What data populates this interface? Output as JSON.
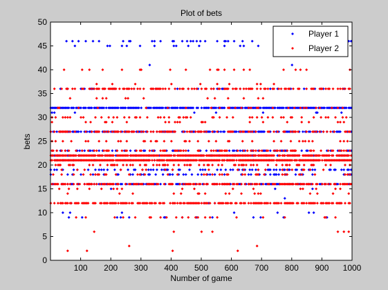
{
  "chart_data": {
    "type": "scatter",
    "title": "Plot of bets",
    "xlabel": "Number of game",
    "ylabel": "bets",
    "xlim": [
      0,
      1000
    ],
    "ylim": [
      0,
      50
    ],
    "xticks": [
      100,
      200,
      300,
      400,
      500,
      600,
      700,
      800,
      900,
      1000
    ],
    "yticks": [
      0,
      5,
      10,
      15,
      20,
      25,
      30,
      35,
      40,
      45,
      50
    ],
    "grid": false,
    "legend": {
      "placement": "top-right",
      "entries": [
        "Player 1",
        "Player 2"
      ]
    },
    "series": [
      {
        "name": "Player 1",
        "color": "#0000ff",
        "marker": "diamond",
        "levels": [
          {
            "y": 45,
            "density": 0.12
          },
          {
            "y": 46,
            "density": 0.13
          },
          {
            "y": 41,
            "density": 0.01
          },
          {
            "y": 36,
            "density": 0.08
          },
          {
            "y": 32,
            "density": 0.85
          },
          {
            "y": 31,
            "density": 0.02
          },
          {
            "y": 27,
            "density": 0.55
          },
          {
            "y": 23,
            "density": 0.3
          },
          {
            "y": 22,
            "density": 0.25
          },
          {
            "y": 21,
            "density": 0.1
          },
          {
            "y": 19,
            "density": 0.35
          },
          {
            "y": 18,
            "density": 0.25
          },
          {
            "y": 16,
            "density": 0.45
          },
          {
            "y": 15,
            "density": 0.02
          },
          {
            "y": 13,
            "density": 0.02
          },
          {
            "y": 12,
            "density": 0.01
          },
          {
            "y": 10,
            "density": 0.02
          },
          {
            "y": 9,
            "density": 0.04
          },
          {
            "y": 5,
            "density": 0.003
          }
        ]
      },
      {
        "name": "Player 2",
        "color": "#ff0000",
        "marker": "diamond",
        "levels": [
          {
            "y": 40,
            "density": 0.08
          },
          {
            "y": 37,
            "density": 0.03
          },
          {
            "y": 36,
            "density": 0.4
          },
          {
            "y": 34,
            "density": 0.05
          },
          {
            "y": 32,
            "density": 0.1
          },
          {
            "y": 30,
            "density": 0.2
          },
          {
            "y": 29,
            "density": 0.1
          },
          {
            "y": 27,
            "density": 0.35
          },
          {
            "y": 25,
            "density": 0.15
          },
          {
            "y": 23,
            "density": 0.3
          },
          {
            "y": 22,
            "density": 0.9
          },
          {
            "y": 21,
            "density": 0.95
          },
          {
            "y": 20,
            "density": 0.25
          },
          {
            "y": 19,
            "density": 0.1
          },
          {
            "y": 18,
            "density": 0.12
          },
          {
            "y": 16,
            "density": 0.55
          },
          {
            "y": 15,
            "density": 0.05
          },
          {
            "y": 14,
            "density": 0.04
          },
          {
            "y": 12,
            "density": 0.65
          },
          {
            "y": 9,
            "density": 0.1
          },
          {
            "y": 6,
            "density": 0.04
          },
          {
            "y": 3,
            "density": 0.005
          },
          {
            "y": 2,
            "density": 0.003
          }
        ]
      }
    ]
  }
}
